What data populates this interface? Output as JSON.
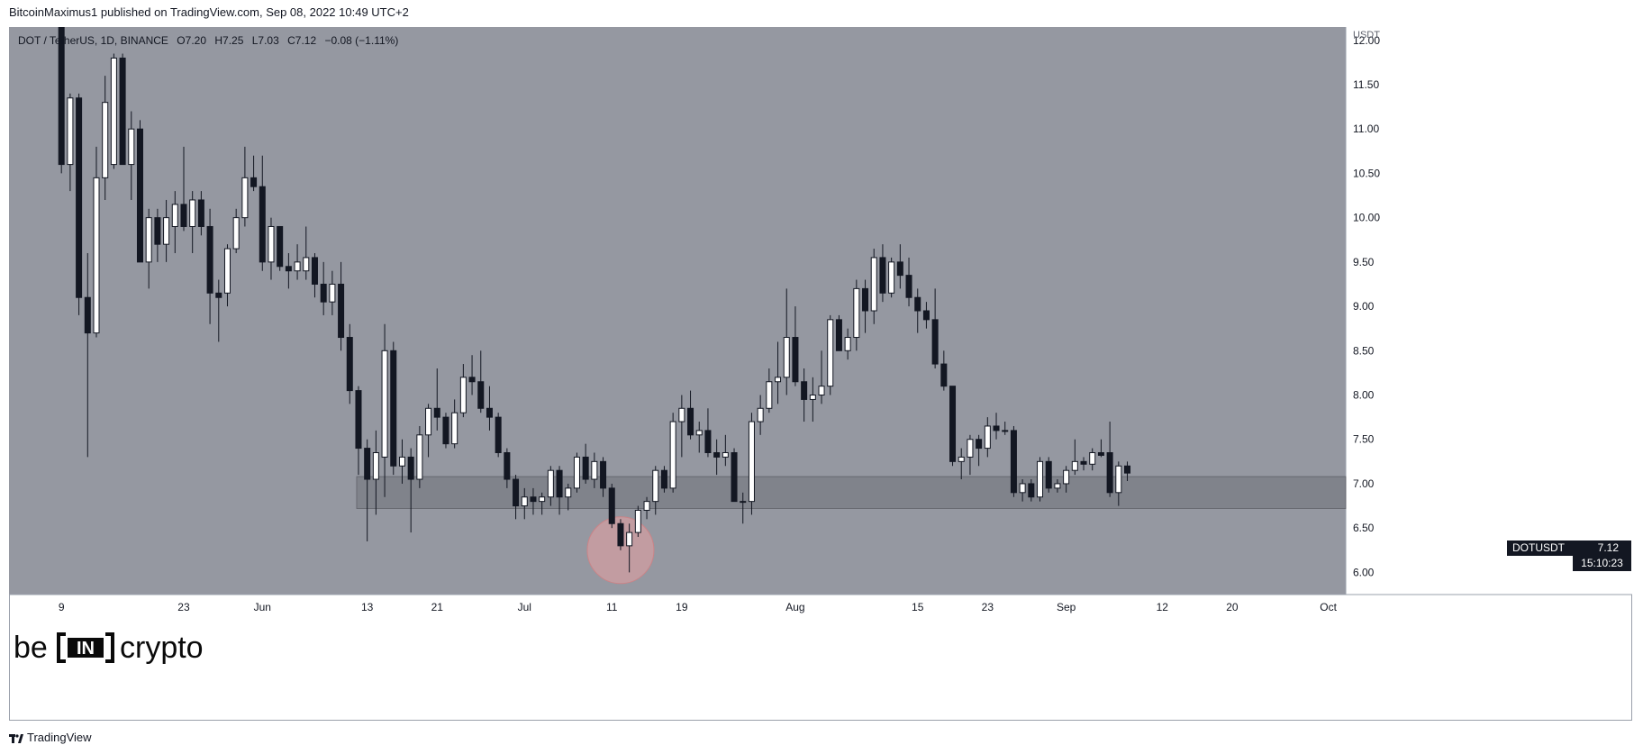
{
  "header": {
    "published_text": "BitcoinMaximus1 published on TradingView.com, Sep 08, 2022 10:49 UTC+2"
  },
  "legend": {
    "symbol": "DOT / TetherUS, 1D, BINANCE",
    "o_label": "O",
    "o_value": "7.20",
    "h_label": "H",
    "h_value": "7.25",
    "l_label": "L",
    "l_value": "7.03",
    "c_label": "C",
    "c_value": "7.12",
    "change": "−0.08 (−1.11%)"
  },
  "price_tag": {
    "symbol": "DOTUSDT",
    "value": "7.12",
    "countdown": "15:10:23"
  },
  "logo": {
    "left": "be",
    "middle": "IN",
    "right": "crypto"
  },
  "footer": {
    "brand": "TradingView"
  },
  "colors": {
    "chart_bg": "#9598a1",
    "zone": "#7c7f87",
    "up_candle": "#ffffff",
    "down_candle": "#131722",
    "circle": "#e8a0a3",
    "price_tag_bg": "#131722"
  },
  "chart_data": {
    "type": "candlestick",
    "title": "DOT / TetherUS, 1D, BINANCE",
    "y_axis": {
      "unit_label": "USDT",
      "ylim": [
        5.75,
        12.15
      ],
      "ticks": [
        "12.00",
        "11.50",
        "11.00",
        "10.50",
        "10.00",
        "9.50",
        "9.00",
        "8.50",
        "8.00",
        "7.50",
        "7.00",
        "6.50",
        "6.00"
      ],
      "position": "right"
    },
    "x_axis": {
      "tick_labels": [
        "9",
        "23",
        "Jun",
        "13",
        "21",
        "Jul",
        "11",
        "19",
        "Aug",
        "15",
        "23",
        "Sep",
        "12",
        "20",
        "Oct"
      ]
    },
    "x_ticks": [
      {
        "label": "9",
        "date": "2022-05-09"
      },
      {
        "label": "23",
        "date": "2022-05-23"
      },
      {
        "label": "Jun",
        "date": "2022-06-01"
      },
      {
        "label": "13",
        "date": "2022-06-13"
      },
      {
        "label": "21",
        "date": "2022-06-21"
      },
      {
        "label": "Jul",
        "date": "2022-07-01"
      },
      {
        "label": "11",
        "date": "2022-07-11"
      },
      {
        "label": "19",
        "date": "2022-07-19"
      },
      {
        "label": "Aug",
        "date": "2022-08-01"
      },
      {
        "label": "15",
        "date": "2022-08-15"
      },
      {
        "label": "23",
        "date": "2022-08-23"
      },
      {
        "label": "Sep",
        "date": "2022-09-01"
      },
      {
        "label": "12",
        "date": "2022-09-12"
      },
      {
        "label": "20",
        "date": "2022-09-20"
      },
      {
        "label": "Oct",
        "date": "2022-10-01"
      }
    ],
    "x_range": [
      "2022-05-03",
      "2022-10-03"
    ],
    "support_zone": {
      "from": 6.72,
      "to": 7.08
    },
    "highlight_circle": {
      "date": "2022-07-12",
      "price": 6.25
    },
    "last_price": 7.12,
    "candles": [
      {
        "d": "2022-05-09",
        "o": 12.2,
        "h": 12.5,
        "l": 10.5,
        "c": 10.6
      },
      {
        "d": "2022-05-10",
        "o": 10.6,
        "h": 11.4,
        "l": 10.3,
        "c": 11.35
      },
      {
        "d": "2022-05-11",
        "o": 11.35,
        "h": 11.4,
        "l": 8.9,
        "c": 9.1
      },
      {
        "d": "2022-05-12",
        "o": 9.1,
        "h": 9.6,
        "l": 7.3,
        "c": 8.7
      },
      {
        "d": "2022-05-13",
        "o": 8.7,
        "h": 10.8,
        "l": 8.65,
        "c": 10.45
      },
      {
        "d": "2022-05-14",
        "o": 10.45,
        "h": 11.6,
        "l": 10.2,
        "c": 11.3
      },
      {
        "d": "2022-05-15",
        "o": 10.6,
        "h": 11.85,
        "l": 10.55,
        "c": 11.8
      },
      {
        "d": "2022-05-16",
        "o": 11.8,
        "h": 11.85,
        "l": 10.6,
        "c": 10.6
      },
      {
        "d": "2022-05-17",
        "o": 10.6,
        "h": 11.2,
        "l": 10.2,
        "c": 11.0
      },
      {
        "d": "2022-05-18",
        "o": 11.0,
        "h": 11.1,
        "l": 9.5,
        "c": 9.5
      },
      {
        "d": "2022-05-19",
        "o": 9.5,
        "h": 10.1,
        "l": 9.2,
        "c": 10.0
      },
      {
        "d": "2022-05-20",
        "o": 10.0,
        "h": 10.1,
        "l": 9.5,
        "c": 9.7
      },
      {
        "d": "2022-05-21",
        "o": 9.7,
        "h": 10.2,
        "l": 9.5,
        "c": 10.0
      },
      {
        "d": "2022-05-22",
        "o": 9.9,
        "h": 10.3,
        "l": 9.6,
        "c": 10.15
      },
      {
        "d": "2022-05-23",
        "o": 10.15,
        "h": 10.8,
        "l": 9.85,
        "c": 9.9
      },
      {
        "d": "2022-05-24",
        "o": 9.9,
        "h": 10.3,
        "l": 9.6,
        "c": 10.2
      },
      {
        "d": "2022-05-25",
        "o": 10.2,
        "h": 10.3,
        "l": 9.8,
        "c": 9.9
      },
      {
        "d": "2022-05-26",
        "o": 9.9,
        "h": 10.1,
        "l": 8.8,
        "c": 9.15
      },
      {
        "d": "2022-05-27",
        "o": 9.15,
        "h": 9.3,
        "l": 8.6,
        "c": 9.1
      },
      {
        "d": "2022-05-28",
        "o": 9.15,
        "h": 9.7,
        "l": 9.0,
        "c": 9.65
      },
      {
        "d": "2022-05-29",
        "o": 9.65,
        "h": 10.1,
        "l": 9.6,
        "c": 10.0
      },
      {
        "d": "2022-05-30",
        "o": 10.0,
        "h": 10.8,
        "l": 9.9,
        "c": 10.45
      },
      {
        "d": "2022-05-31",
        "o": 10.45,
        "h": 10.7,
        "l": 10.3,
        "c": 10.35
      },
      {
        "d": "2022-06-01",
        "o": 10.35,
        "h": 10.7,
        "l": 9.4,
        "c": 9.5
      },
      {
        "d": "2022-06-02",
        "o": 9.5,
        "h": 10.0,
        "l": 9.3,
        "c": 9.9
      },
      {
        "d": "2022-06-03",
        "o": 9.9,
        "h": 9.9,
        "l": 9.4,
        "c": 9.45
      },
      {
        "d": "2022-06-04",
        "o": 9.45,
        "h": 9.6,
        "l": 9.2,
        "c": 9.4
      },
      {
        "d": "2022-06-05",
        "o": 9.4,
        "h": 9.7,
        "l": 9.3,
        "c": 9.5
      },
      {
        "d": "2022-06-06",
        "o": 9.4,
        "h": 9.9,
        "l": 9.3,
        "c": 9.55
      },
      {
        "d": "2022-06-07",
        "o": 9.55,
        "h": 9.6,
        "l": 9.1,
        "c": 9.25
      },
      {
        "d": "2022-06-08",
        "o": 9.25,
        "h": 9.5,
        "l": 8.9,
        "c": 9.05
      },
      {
        "d": "2022-06-09",
        "o": 9.05,
        "h": 9.4,
        "l": 8.9,
        "c": 9.25
      },
      {
        "d": "2022-06-10",
        "o": 9.25,
        "h": 9.5,
        "l": 8.5,
        "c": 8.65
      },
      {
        "d": "2022-06-11",
        "o": 8.65,
        "h": 8.8,
        "l": 7.9,
        "c": 8.05
      },
      {
        "d": "2022-06-12",
        "o": 8.05,
        "h": 8.1,
        "l": 7.1,
        "c": 7.4
      },
      {
        "d": "2022-06-13",
        "o": 7.4,
        "h": 7.5,
        "l": 6.35,
        "c": 7.05
      },
      {
        "d": "2022-06-14",
        "o": 7.05,
        "h": 7.6,
        "l": 6.65,
        "c": 7.35
      },
      {
        "d": "2022-06-15",
        "o": 7.3,
        "h": 8.8,
        "l": 6.85,
        "c": 8.5
      },
      {
        "d": "2022-06-16",
        "o": 8.5,
        "h": 8.6,
        "l": 7.1,
        "c": 7.2
      },
      {
        "d": "2022-06-17",
        "o": 7.2,
        "h": 7.5,
        "l": 7.0,
        "c": 7.3
      },
      {
        "d": "2022-06-18",
        "o": 7.3,
        "h": 7.4,
        "l": 6.45,
        "c": 7.05
      },
      {
        "d": "2022-06-19",
        "o": 7.05,
        "h": 7.65,
        "l": 6.95,
        "c": 7.55
      },
      {
        "d": "2022-06-20",
        "o": 7.55,
        "h": 7.9,
        "l": 7.3,
        "c": 7.85
      },
      {
        "d": "2022-06-21",
        "o": 7.85,
        "h": 8.3,
        "l": 7.6,
        "c": 7.75
      },
      {
        "d": "2022-06-22",
        "o": 7.75,
        "h": 7.8,
        "l": 7.4,
        "c": 7.45
      },
      {
        "d": "2022-06-23",
        "o": 7.45,
        "h": 7.95,
        "l": 7.4,
        "c": 7.8
      },
      {
        "d": "2022-06-24",
        "o": 7.8,
        "h": 8.35,
        "l": 7.75,
        "c": 8.2
      },
      {
        "d": "2022-06-25",
        "o": 8.2,
        "h": 8.45,
        "l": 8.0,
        "c": 8.15
      },
      {
        "d": "2022-06-26",
        "o": 8.15,
        "h": 8.5,
        "l": 7.8,
        "c": 7.85
      },
      {
        "d": "2022-06-27",
        "o": 7.85,
        "h": 8.1,
        "l": 7.6,
        "c": 7.75
      },
      {
        "d": "2022-06-28",
        "o": 7.75,
        "h": 7.8,
        "l": 7.3,
        "c": 7.35
      },
      {
        "d": "2022-06-29",
        "o": 7.35,
        "h": 7.4,
        "l": 6.95,
        "c": 7.05
      },
      {
        "d": "2022-06-30",
        "o": 7.05,
        "h": 7.1,
        "l": 6.6,
        "c": 6.75
      },
      {
        "d": "2022-07-01",
        "o": 6.75,
        "h": 6.95,
        "l": 6.6,
        "c": 6.85
      },
      {
        "d": "2022-07-02",
        "o": 6.85,
        "h": 6.95,
        "l": 6.65,
        "c": 6.8
      },
      {
        "d": "2022-07-03",
        "o": 6.8,
        "h": 6.9,
        "l": 6.65,
        "c": 6.85
      },
      {
        "d": "2022-07-04",
        "o": 6.85,
        "h": 7.2,
        "l": 6.75,
        "c": 7.15
      },
      {
        "d": "2022-07-05",
        "o": 7.15,
        "h": 7.2,
        "l": 6.65,
        "c": 6.85
      },
      {
        "d": "2022-07-06",
        "o": 6.85,
        "h": 7.0,
        "l": 6.7,
        "c": 6.95
      },
      {
        "d": "2022-07-07",
        "o": 6.95,
        "h": 7.35,
        "l": 6.9,
        "c": 7.3
      },
      {
        "d": "2022-07-08",
        "o": 7.3,
        "h": 7.45,
        "l": 7.0,
        "c": 7.05
      },
      {
        "d": "2022-07-09",
        "o": 7.05,
        "h": 7.35,
        "l": 6.95,
        "c": 7.25
      },
      {
        "d": "2022-07-10",
        "o": 7.25,
        "h": 7.3,
        "l": 6.85,
        "c": 6.95
      },
      {
        "d": "2022-07-11",
        "o": 6.95,
        "h": 7.0,
        "l": 6.5,
        "c": 6.55
      },
      {
        "d": "2022-07-12",
        "o": 6.55,
        "h": 6.6,
        "l": 6.25,
        "c": 6.3
      },
      {
        "d": "2022-07-13",
        "o": 6.3,
        "h": 6.55,
        "l": 6.0,
        "c": 6.45
      },
      {
        "d": "2022-07-14",
        "o": 6.45,
        "h": 6.75,
        "l": 6.4,
        "c": 6.7
      },
      {
        "d": "2022-07-15",
        "o": 6.7,
        "h": 6.85,
        "l": 6.6,
        "c": 6.8
      },
      {
        "d": "2022-07-16",
        "o": 6.8,
        "h": 7.2,
        "l": 6.65,
        "c": 7.15
      },
      {
        "d": "2022-07-17",
        "o": 7.15,
        "h": 7.2,
        "l": 6.9,
        "c": 6.95
      },
      {
        "d": "2022-07-18",
        "o": 6.95,
        "h": 7.8,
        "l": 6.9,
        "c": 7.7
      },
      {
        "d": "2022-07-19",
        "o": 7.7,
        "h": 8.0,
        "l": 7.3,
        "c": 7.85
      },
      {
        "d": "2022-07-20",
        "o": 7.85,
        "h": 8.05,
        "l": 7.5,
        "c": 7.55
      },
      {
        "d": "2022-07-21",
        "o": 7.55,
        "h": 7.7,
        "l": 7.35,
        "c": 7.6
      },
      {
        "d": "2022-07-22",
        "o": 7.6,
        "h": 7.85,
        "l": 7.3,
        "c": 7.35
      },
      {
        "d": "2022-07-23",
        "o": 7.35,
        "h": 7.5,
        "l": 7.1,
        "c": 7.3
      },
      {
        "d": "2022-07-24",
        "o": 7.3,
        "h": 7.55,
        "l": 7.2,
        "c": 7.35
      },
      {
        "d": "2022-07-25",
        "o": 7.35,
        "h": 7.4,
        "l": 6.8,
        "c": 6.8
      },
      {
        "d": "2022-07-26",
        "o": 6.8,
        "h": 6.9,
        "l": 6.55,
        "c": 6.8
      },
      {
        "d": "2022-07-27",
        "o": 6.8,
        "h": 7.8,
        "l": 6.65,
        "c": 7.7
      },
      {
        "d": "2022-07-28",
        "o": 7.7,
        "h": 8.0,
        "l": 7.55,
        "c": 7.85
      },
      {
        "d": "2022-07-29",
        "o": 7.85,
        "h": 8.3,
        "l": 7.8,
        "c": 8.15
      },
      {
        "d": "2022-07-30",
        "o": 8.15,
        "h": 8.6,
        "l": 7.9,
        "c": 8.2
      },
      {
        "d": "2022-07-31",
        "o": 8.2,
        "h": 9.2,
        "l": 8.0,
        "c": 8.65
      },
      {
        "d": "2022-08-01",
        "o": 8.65,
        "h": 9.0,
        "l": 8.1,
        "c": 8.15
      },
      {
        "d": "2022-08-02",
        "o": 8.15,
        "h": 8.3,
        "l": 7.7,
        "c": 7.95
      },
      {
        "d": "2022-08-03",
        "o": 7.95,
        "h": 8.2,
        "l": 7.7,
        "c": 8.0
      },
      {
        "d": "2022-08-04",
        "o": 8.0,
        "h": 8.5,
        "l": 7.9,
        "c": 8.1
      },
      {
        "d": "2022-08-05",
        "o": 8.1,
        "h": 8.9,
        "l": 8.0,
        "c": 8.85
      },
      {
        "d": "2022-08-06",
        "o": 8.85,
        "h": 8.9,
        "l": 8.5,
        "c": 8.5
      },
      {
        "d": "2022-08-07",
        "o": 8.5,
        "h": 8.75,
        "l": 8.4,
        "c": 8.65
      },
      {
        "d": "2022-08-08",
        "o": 8.65,
        "h": 9.3,
        "l": 8.5,
        "c": 9.2
      },
      {
        "d": "2022-08-09",
        "o": 9.2,
        "h": 9.3,
        "l": 8.7,
        "c": 8.95
      },
      {
        "d": "2022-08-10",
        "o": 8.95,
        "h": 9.65,
        "l": 8.8,
        "c": 9.55
      },
      {
        "d": "2022-08-11",
        "o": 9.55,
        "h": 9.7,
        "l": 9.05,
        "c": 9.15
      },
      {
        "d": "2022-08-12",
        "o": 9.15,
        "h": 9.55,
        "l": 9.1,
        "c": 9.5
      },
      {
        "d": "2022-08-13",
        "o": 9.5,
        "h": 9.7,
        "l": 9.2,
        "c": 9.35
      },
      {
        "d": "2022-08-14",
        "o": 9.35,
        "h": 9.55,
        "l": 9.0,
        "c": 9.1
      },
      {
        "d": "2022-08-15",
        "o": 9.1,
        "h": 9.2,
        "l": 8.7,
        "c": 8.95
      },
      {
        "d": "2022-08-16",
        "o": 8.95,
        "h": 9.05,
        "l": 8.75,
        "c": 8.85
      },
      {
        "d": "2022-08-17",
        "o": 8.85,
        "h": 9.2,
        "l": 8.3,
        "c": 8.35
      },
      {
        "d": "2022-08-18",
        "o": 8.35,
        "h": 8.5,
        "l": 8.05,
        "c": 8.1
      },
      {
        "d": "2022-08-19",
        "o": 8.1,
        "h": 8.1,
        "l": 7.2,
        "c": 7.25
      },
      {
        "d": "2022-08-20",
        "o": 7.25,
        "h": 7.4,
        "l": 7.05,
        "c": 7.3
      },
      {
        "d": "2022-08-21",
        "o": 7.3,
        "h": 7.55,
        "l": 7.1,
        "c": 7.5
      },
      {
        "d": "2022-08-22",
        "o": 7.5,
        "h": 7.55,
        "l": 7.2,
        "c": 7.4
      },
      {
        "d": "2022-08-23",
        "o": 7.4,
        "h": 7.75,
        "l": 7.3,
        "c": 7.65
      },
      {
        "d": "2022-08-24",
        "o": 7.65,
        "h": 7.8,
        "l": 7.5,
        "c": 7.6
      },
      {
        "d": "2022-08-25",
        "o": 7.6,
        "h": 7.7,
        "l": 7.55,
        "c": 7.6
      },
      {
        "d": "2022-08-26",
        "o": 7.6,
        "h": 7.65,
        "l": 6.85,
        "c": 6.9
      },
      {
        "d": "2022-08-27",
        "o": 6.9,
        "h": 7.05,
        "l": 6.8,
        "c": 7.0
      },
      {
        "d": "2022-08-28",
        "o": 7.0,
        "h": 7.05,
        "l": 6.8,
        "c": 6.85
      },
      {
        "d": "2022-08-29",
        "o": 6.85,
        "h": 7.3,
        "l": 6.8,
        "c": 7.25
      },
      {
        "d": "2022-08-30",
        "o": 7.25,
        "h": 7.3,
        "l": 6.9,
        "c": 6.95
      },
      {
        "d": "2022-08-31",
        "o": 6.95,
        "h": 7.05,
        "l": 6.9,
        "c": 7.0
      },
      {
        "d": "2022-09-01",
        "o": 7.0,
        "h": 7.2,
        "l": 6.9,
        "c": 7.15
      },
      {
        "d": "2022-09-02",
        "o": 7.15,
        "h": 7.5,
        "l": 7.1,
        "c": 7.25
      },
      {
        "d": "2022-09-03",
        "o": 7.25,
        "h": 7.3,
        "l": 7.15,
        "c": 7.22
      },
      {
        "d": "2022-09-04",
        "o": 7.22,
        "h": 7.4,
        "l": 7.15,
        "c": 7.35
      },
      {
        "d": "2022-09-05",
        "o": 7.35,
        "h": 7.5,
        "l": 7.3,
        "c": 7.32
      },
      {
        "d": "2022-09-06",
        "o": 7.35,
        "h": 7.7,
        "l": 6.85,
        "c": 6.9
      },
      {
        "d": "2022-09-07",
        "o": 6.9,
        "h": 7.25,
        "l": 6.75,
        "c": 7.2
      },
      {
        "d": "2022-09-08",
        "o": 7.2,
        "h": 7.25,
        "l": 7.03,
        "c": 7.12
      }
    ]
  }
}
